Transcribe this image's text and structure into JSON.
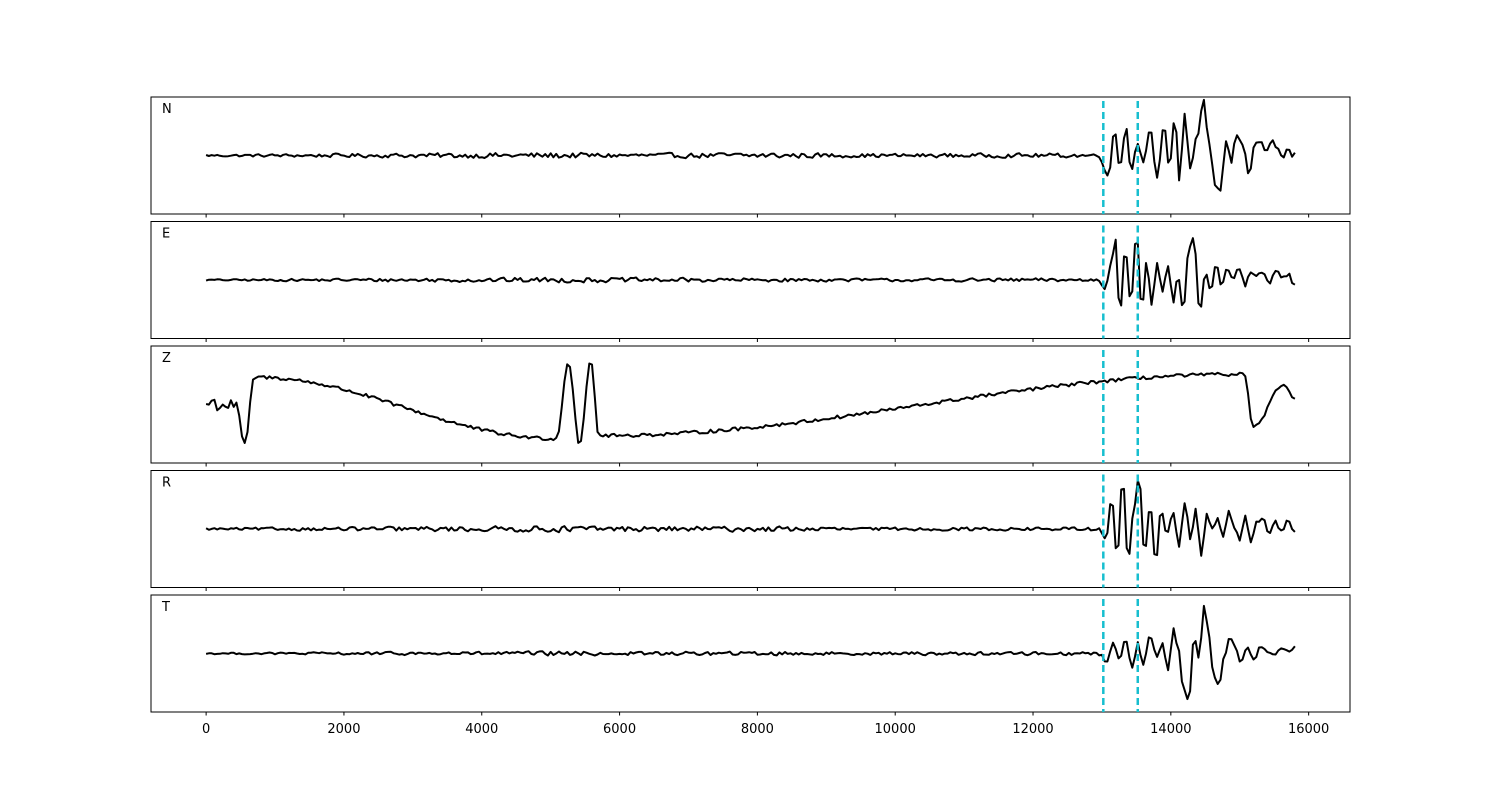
{
  "chart_data": {
    "type": "line",
    "title": "",
    "xlabel": "",
    "ylabel": "",
    "xlim": [
      -800,
      16600
    ],
    "x_ticks": [
      0,
      2000,
      4000,
      6000,
      8000,
      10000,
      12000,
      14000,
      16000
    ],
    "x_tick_labels": [
      "0",
      "2000",
      "4000",
      "6000",
      "8000",
      "10000",
      "12000",
      "14000",
      "16000"
    ],
    "grid": false,
    "line_color": "#000000",
    "marker_color": "#17becf",
    "markers": [
      13020,
      13520
    ],
    "x_start": 0,
    "x_end": 15800,
    "panels": [
      {
        "label": "N",
        "noise": [
          [
            0,
            0.03
          ],
          [
            5000,
            0.08
          ],
          [
            6500,
            0.06
          ],
          [
            8200,
            0.08
          ],
          [
            9500,
            0.05
          ],
          [
            12800,
            0.06
          ]
        ],
        "keypoints": [
          [
            12950,
            0
          ],
          [
            13100,
            -0.35
          ],
          [
            13180,
            0.45
          ],
          [
            13260,
            -0.2
          ],
          [
            13350,
            0.5
          ],
          [
            13420,
            -0.25
          ],
          [
            13520,
            0.2
          ],
          [
            13600,
            -0.1
          ],
          [
            13700,
            0.45
          ],
          [
            13800,
            -0.35
          ],
          [
            13900,
            0.5
          ],
          [
            13980,
            -0.2
          ],
          [
            14060,
            0.65
          ],
          [
            14120,
            -0.45
          ],
          [
            14200,
            0.7
          ],
          [
            14280,
            -0.2
          ],
          [
            14380,
            0.3
          ],
          [
            14470,
            0.95
          ],
          [
            14560,
            0.2
          ],
          [
            14640,
            -0.5
          ],
          [
            14720,
            -0.6
          ],
          [
            14800,
            0.25
          ],
          [
            14880,
            -0.1
          ],
          [
            14950,
            0.35
          ],
          [
            15050,
            0.15
          ],
          [
            15130,
            -0.35
          ],
          [
            15220,
            0.2
          ],
          [
            15300,
            0.25
          ],
          [
            15380,
            0.05
          ],
          [
            15460,
            0.25
          ],
          [
            15540,
            0.15
          ],
          [
            15620,
            -0.05
          ],
          [
            15700,
            0.15
          ],
          [
            15760,
            0.0
          ],
          [
            15800,
            0.05
          ]
        ]
      },
      {
        "label": "E",
        "noise": [
          [
            0,
            0.02
          ],
          [
            5000,
            0.07
          ],
          [
            6500,
            0.06
          ],
          [
            8000,
            0.05
          ],
          [
            9500,
            0.04
          ],
          [
            12800,
            0.05
          ]
        ],
        "keypoints": [
          [
            12950,
            0
          ],
          [
            13050,
            -0.15
          ],
          [
            13120,
            0.25
          ],
          [
            13200,
            0.7
          ],
          [
            13260,
            -0.6
          ],
          [
            13340,
            0.55
          ],
          [
            13420,
            -0.4
          ],
          [
            13500,
            0.8
          ],
          [
            13580,
            -0.5
          ],
          [
            13650,
            0.35
          ],
          [
            13720,
            -0.45
          ],
          [
            13800,
            0.3
          ],
          [
            13880,
            -0.2
          ],
          [
            13960,
            0.25
          ],
          [
            14040,
            -0.4
          ],
          [
            14100,
            0.1
          ],
          [
            14180,
            -0.55
          ],
          [
            14260,
            0.5
          ],
          [
            14330,
            0.75
          ],
          [
            14420,
            -0.55
          ],
          [
            14500,
            0.1
          ],
          [
            14580,
            -0.15
          ],
          [
            14660,
            0.25
          ],
          [
            14740,
            -0.1
          ],
          [
            14820,
            0.2
          ],
          [
            14900,
            0.0
          ],
          [
            14990,
            0.2
          ],
          [
            15080,
            -0.1
          ],
          [
            15160,
            0.15
          ],
          [
            15240,
            0.05
          ],
          [
            15330,
            0.15
          ],
          [
            15420,
            -0.05
          ],
          [
            15520,
            0.15
          ],
          [
            15620,
            0.05
          ],
          [
            15700,
            0.1
          ],
          [
            15800,
            -0.1
          ]
        ]
      },
      {
        "label": "Z",
        "noise": [
          [
            0,
            0.25
          ],
          [
            1500,
            0.28
          ],
          [
            5000,
            0.4
          ],
          [
            6500,
            0.3
          ],
          [
            8200,
            0.3
          ],
          [
            11000,
            0.28
          ],
          [
            15800,
            0.3
          ]
        ],
        "keypoints": [
          [
            430,
            0.0
          ],
          [
            560,
            -0.7
          ],
          [
            700,
            0.45
          ],
          [
            5080,
            -0.6
          ],
          [
            5260,
            0.7
          ],
          [
            5420,
            -0.7
          ],
          [
            5580,
            0.75
          ],
          [
            5700,
            -0.55
          ],
          [
            15060,
            0.5
          ],
          [
            15200,
            -0.4
          ],
          [
            15630,
            0.3
          ],
          [
            15800,
            0.1
          ]
        ]
      },
      {
        "label": "R",
        "noise": [
          [
            0,
            0.03
          ],
          [
            5000,
            0.08
          ],
          [
            6500,
            0.07
          ],
          [
            8200,
            0.07
          ],
          [
            9500,
            0.04
          ],
          [
            12800,
            0.05
          ]
        ],
        "keypoints": [
          [
            12950,
            0
          ],
          [
            13060,
            -0.2
          ],
          [
            13140,
            0.55
          ],
          [
            13220,
            -0.5
          ],
          [
            13300,
            0.9
          ],
          [
            13380,
            -0.55
          ],
          [
            13470,
            0.4
          ],
          [
            13540,
            0.9
          ],
          [
            13620,
            -0.45
          ],
          [
            13700,
            0.45
          ],
          [
            13780,
            -0.55
          ],
          [
            13860,
            0.35
          ],
          [
            13940,
            -0.1
          ],
          [
            14030,
            0.3
          ],
          [
            14120,
            -0.3
          ],
          [
            14200,
            0.45
          ],
          [
            14290,
            -0.2
          ],
          [
            14360,
            0.35
          ],
          [
            14440,
            -0.45
          ],
          [
            14520,
            0.25
          ],
          [
            14600,
            0.0
          ],
          [
            14680,
            0.2
          ],
          [
            14760,
            -0.15
          ],
          [
            14840,
            0.3
          ],
          [
            14920,
            0.05
          ],
          [
            15000,
            -0.2
          ],
          [
            15080,
            0.2
          ],
          [
            15160,
            -0.25
          ],
          [
            15240,
            0.1
          ],
          [
            15330,
            0.2
          ],
          [
            15420,
            -0.1
          ],
          [
            15520,
            0.15
          ],
          [
            15600,
            -0.05
          ],
          [
            15700,
            0.15
          ],
          [
            15800,
            -0.05
          ]
        ]
      },
      {
        "label": "T",
        "noise": [
          [
            0,
            0.02
          ],
          [
            5000,
            0.06
          ],
          [
            6500,
            0.05
          ],
          [
            8200,
            0.05
          ],
          [
            9500,
            0.04
          ],
          [
            12800,
            0.05
          ]
        ],
        "keypoints": [
          [
            12950,
            0
          ],
          [
            13080,
            -0.15
          ],
          [
            13160,
            0.2
          ],
          [
            13250,
            -0.1
          ],
          [
            13340,
            0.25
          ],
          [
            13440,
            -0.25
          ],
          [
            13520,
            0.2
          ],
          [
            13600,
            -0.2
          ],
          [
            13700,
            0.3
          ],
          [
            13800,
            -0.05
          ],
          [
            13880,
            0.15
          ],
          [
            13960,
            -0.3
          ],
          [
            14040,
            0.45
          ],
          [
            14110,
            0.05
          ],
          [
            14180,
            -0.6
          ],
          [
            14260,
            -0.8
          ],
          [
            14340,
            0.3
          ],
          [
            14410,
            -0.1
          ],
          [
            14480,
            0.8
          ],
          [
            14560,
            0.3
          ],
          [
            14620,
            -0.4
          ],
          [
            14700,
            -0.55
          ],
          [
            14780,
            0.0
          ],
          [
            14860,
            0.3
          ],
          [
            14940,
            0.1
          ],
          [
            15020,
            -0.15
          ],
          [
            15100,
            0.1
          ],
          [
            15200,
            -0.1
          ],
          [
            15300,
            0.1
          ],
          [
            15400,
            0.05
          ],
          [
            15500,
            -0.05
          ],
          [
            15600,
            0.1
          ],
          [
            15700,
            0.05
          ],
          [
            15800,
            0.1
          ]
        ]
      }
    ]
  }
}
